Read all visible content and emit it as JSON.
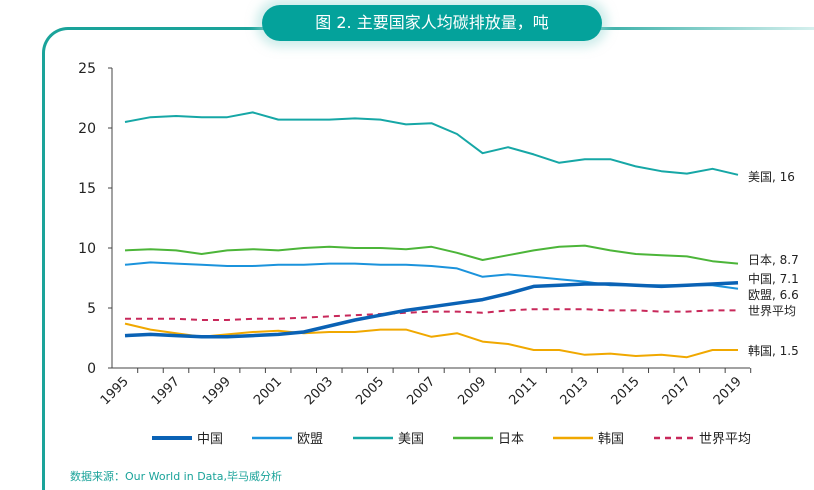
{
  "chart_data": {
    "type": "line",
    "title": "图 2. 主要国家人均碳排放量，吨",
    "x": [
      1995,
      1996,
      1997,
      1998,
      1999,
      2000,
      2001,
      2002,
      2003,
      2004,
      2005,
      2006,
      2007,
      2008,
      2009,
      2010,
      2011,
      2012,
      2013,
      2014,
      2015,
      2016,
      2017,
      2018,
      2019
    ],
    "x_tick_labels": [
      "1995",
      "1997",
      "1999",
      "2001",
      "2003",
      "2005",
      "2007",
      "2009",
      "2011",
      "2013",
      "2015",
      "2017",
      "2019"
    ],
    "y_tick_labels": [
      "0",
      "5",
      "10",
      "15",
      "20",
      "25"
    ],
    "ylim": [
      0,
      25
    ],
    "grid": false,
    "legend_position": "bottom",
    "series": [
      {
        "name": "中国",
        "color": "#0a62b5",
        "width": 3.5,
        "dash": "",
        "end_label": "中国, 7.1",
        "values": [
          2.7,
          2.8,
          2.7,
          2.6,
          2.6,
          2.7,
          2.8,
          3.0,
          3.5,
          4.0,
          4.4,
          4.8,
          5.1,
          5.4,
          5.7,
          6.2,
          6.8,
          6.9,
          7.0,
          7.0,
          6.9,
          6.8,
          6.9,
          7.0,
          7.1
        ]
      },
      {
        "name": "欧盟",
        "color": "#1b93dc",
        "width": 2,
        "dash": "",
        "end_label": "欧盟, 6.6",
        "values": [
          8.6,
          8.8,
          8.7,
          8.6,
          8.5,
          8.5,
          8.6,
          8.6,
          8.7,
          8.7,
          8.6,
          8.6,
          8.5,
          8.3,
          7.6,
          7.8,
          7.6,
          7.4,
          7.2,
          6.9,
          6.9,
          6.9,
          6.9,
          6.9,
          6.6
        ]
      },
      {
        "name": "美国",
        "color": "#16a7a6",
        "width": 2,
        "dash": "",
        "end_label": "美国, 16",
        "values": [
          20.5,
          20.9,
          21.0,
          20.9,
          20.9,
          21.3,
          20.7,
          20.7,
          20.7,
          20.8,
          20.7,
          20.3,
          20.4,
          19.5,
          17.9,
          18.4,
          17.8,
          17.1,
          17.4,
          17.4,
          16.8,
          16.4,
          16.2,
          16.6,
          16.1
        ]
      },
      {
        "name": "日本",
        "color": "#4cb539",
        "width": 2,
        "dash": "",
        "end_label": "日本, 8.7",
        "values": [
          9.8,
          9.9,
          9.8,
          9.5,
          9.8,
          9.9,
          9.8,
          10.0,
          10.1,
          10.0,
          10.0,
          9.9,
          10.1,
          9.6,
          9.0,
          9.4,
          9.8,
          10.1,
          10.2,
          9.8,
          9.5,
          9.4,
          9.3,
          8.9,
          8.7
        ]
      },
      {
        "name": "韩国",
        "color": "#f0a800",
        "width": 2,
        "dash": "",
        "end_label": "韩国, 1.5",
        "values": [
          3.7,
          3.2,
          2.9,
          2.6,
          2.8,
          3.0,
          3.1,
          2.9,
          3.0,
          3.0,
          3.2,
          3.2,
          2.6,
          2.9,
          2.2,
          2.0,
          1.5,
          1.5,
          1.1,
          1.2,
          1.0,
          1.1,
          0.9,
          1.5,
          1.5
        ]
      },
      {
        "name": "世界平均",
        "color": "#c8285a",
        "width": 2,
        "dash": "6,5",
        "end_label": "世界平均",
        "values": [
          4.1,
          4.1,
          4.1,
          4.0,
          4.0,
          4.1,
          4.1,
          4.2,
          4.3,
          4.4,
          4.5,
          4.6,
          4.7,
          4.7,
          4.6,
          4.8,
          4.9,
          4.9,
          4.9,
          4.8,
          4.8,
          4.7,
          4.7,
          4.8,
          4.8
        ]
      }
    ]
  },
  "source": "数据来源：Our World in Data,毕马威分析"
}
